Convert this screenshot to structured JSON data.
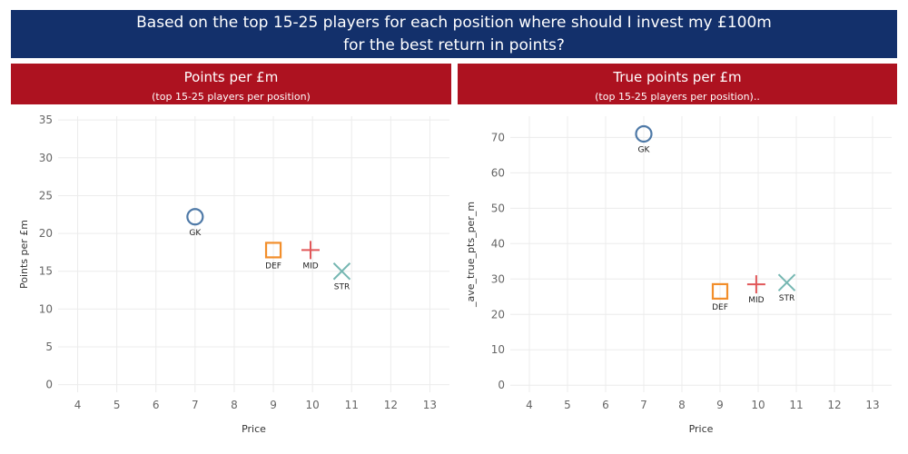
{
  "header": {
    "title": "Based on the top 15-25 players for each position where should I invest my £100m\nfor the best return in points?"
  },
  "colors": {
    "header_bg": "#13306b",
    "panel_bg": "#ad1220",
    "GK": "#4e79a7",
    "DEF": "#f28e2b",
    "MID": "#e15759",
    "STR": "#76b7b2"
  },
  "panels": [
    {
      "title": "Points per £m",
      "subtitle": "(top 15-25 players per position)"
    },
    {
      "title": "True points per £m",
      "subtitle": "(top 15-25 players per position).."
    }
  ],
  "chart_data": [
    {
      "type": "scatter",
      "title": "Points per £m",
      "xlabel": "Price",
      "ylabel": "Points per £m",
      "xlim": [
        3.5,
        13.5
      ],
      "ylim": [
        -1,
        35.5
      ],
      "xticks": [
        4,
        5,
        6,
        7,
        8,
        9,
        10,
        11,
        12,
        13
      ],
      "yticks": [
        0,
        5,
        10,
        15,
        20,
        25,
        30,
        35
      ],
      "grid": true,
      "points": [
        {
          "label": "GK",
          "shape": "circle",
          "x": 7.0,
          "y": 22.2
        },
        {
          "label": "DEF",
          "shape": "square",
          "x": 9.0,
          "y": 17.8
        },
        {
          "label": "MID",
          "shape": "plus",
          "x": 9.95,
          "y": 17.8
        },
        {
          "label": "STR",
          "shape": "cross",
          "x": 10.75,
          "y": 15.0
        }
      ]
    },
    {
      "type": "scatter",
      "title": "True points per £m",
      "xlabel": "Price",
      "ylabel": "_ave_true_pts_per_m",
      "xlim": [
        3.5,
        13.5
      ],
      "ylim": [
        -2,
        76
      ],
      "xticks": [
        4,
        5,
        6,
        7,
        8,
        9,
        10,
        11,
        12,
        13
      ],
      "yticks": [
        0,
        10,
        20,
        30,
        40,
        50,
        60,
        70
      ],
      "grid": true,
      "points": [
        {
          "label": "GK",
          "shape": "circle",
          "x": 7.0,
          "y": 71.0
        },
        {
          "label": "DEF",
          "shape": "square",
          "x": 9.0,
          "y": 26.5
        },
        {
          "label": "MID",
          "shape": "plus",
          "x": 9.95,
          "y": 28.5
        },
        {
          "label": "STR",
          "shape": "cross",
          "x": 10.75,
          "y": 29.0
        }
      ]
    }
  ]
}
